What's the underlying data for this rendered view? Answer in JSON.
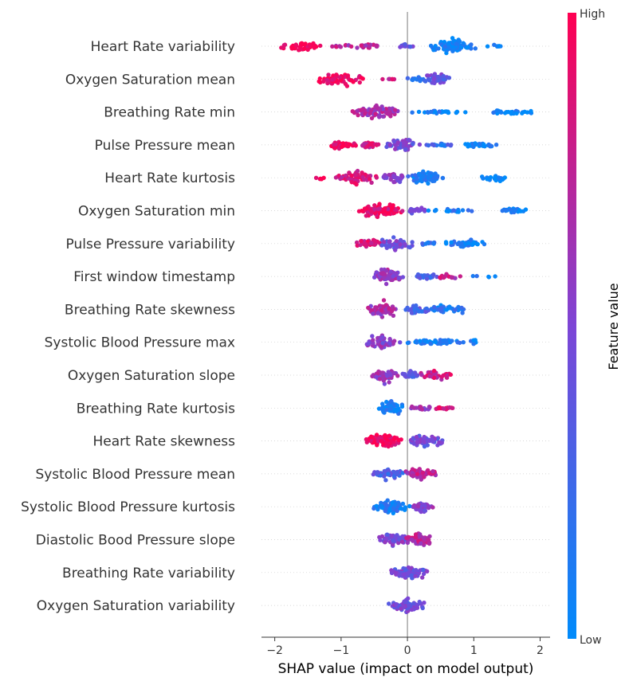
{
  "chart_data": {
    "type": "scatter",
    "subtype": "shap-beeswarm",
    "xlabel": "SHAP value (impact on model output)",
    "xlim": [
      -2.2,
      2.15
    ],
    "xticks": [
      -2,
      -1,
      0,
      1,
      2
    ],
    "xtick_labels": [
      "−2",
      "−1",
      "0",
      "1",
      "2"
    ],
    "colorbar": {
      "title": "Feature value",
      "high_label": "High",
      "low_label": "Low",
      "high_color": "#ff0052",
      "low_color": "#008bfb"
    },
    "features": [
      {
        "name": "Heart Rate variability",
        "groups": [
          {
            "lo": -2.0,
            "hi": -1.2,
            "val": 0.96,
            "n": 42,
            "w": 0.6
          },
          {
            "lo": -1.2,
            "hi": -0.3,
            "val": 0.72,
            "n": 30,
            "w": 0.3
          },
          {
            "lo": -0.2,
            "hi": 0.1,
            "val": 0.45,
            "n": 10,
            "w": 0.4
          },
          {
            "lo": 0.3,
            "hi": 1.05,
            "val": 0.06,
            "n": 85,
            "w": 1.0
          },
          {
            "lo": 1.1,
            "hi": 1.55,
            "val": 0.04,
            "n": 8,
            "w": 0.2
          }
        ]
      },
      {
        "name": "Oxygen Saturation mean",
        "groups": [
          {
            "lo": -1.4,
            "hi": -0.6,
            "val": 0.96,
            "n": 55,
            "w": 0.9
          },
          {
            "lo": -0.5,
            "hi": -0.15,
            "val": 0.8,
            "n": 6,
            "w": 0.1
          },
          {
            "lo": 0.0,
            "hi": 0.3,
            "val": 0.2,
            "n": 14,
            "w": 0.4
          },
          {
            "lo": 0.25,
            "hi": 0.65,
            "val": 0.4,
            "n": 40,
            "w": 0.9
          }
        ]
      },
      {
        "name": "Breathing Rate min",
        "groups": [
          {
            "lo": -0.85,
            "hi": -0.1,
            "val": 0.65,
            "n": 80,
            "w": 1.0
          },
          {
            "lo": 0.0,
            "hi": 0.95,
            "val": 0.06,
            "n": 25,
            "w": 0.2
          },
          {
            "lo": 1.1,
            "hi": 1.95,
            "val": 0.03,
            "n": 30,
            "w": 0.35
          }
        ]
      },
      {
        "name": "Pulse Pressure mean",
        "groups": [
          {
            "lo": -1.3,
            "hi": -0.75,
            "val": 0.95,
            "n": 40,
            "w": 0.6
          },
          {
            "lo": -0.75,
            "hi": -0.4,
            "val": 0.85,
            "n": 25,
            "w": 0.5
          },
          {
            "lo": -0.4,
            "hi": 0.25,
            "val": 0.45,
            "n": 60,
            "w": 0.9
          },
          {
            "lo": 0.25,
            "hi": 0.75,
            "val": 0.2,
            "n": 20,
            "w": 0.3
          },
          {
            "lo": 0.8,
            "hi": 1.4,
            "val": 0.05,
            "n": 30,
            "w": 0.3
          }
        ]
      },
      {
        "name": "Heart Rate kurtosis",
        "groups": [
          {
            "lo": -1.45,
            "hi": -1.2,
            "val": 0.95,
            "n": 5,
            "w": 0.3
          },
          {
            "lo": -1.1,
            "hi": -0.4,
            "val": 0.85,
            "n": 55,
            "w": 0.9
          },
          {
            "lo": -0.4,
            "hi": 0.0,
            "val": 0.55,
            "n": 35,
            "w": 0.7
          },
          {
            "lo": 0.0,
            "hi": 0.55,
            "val": 0.12,
            "n": 55,
            "w": 1.0
          },
          {
            "lo": 1.1,
            "hi": 1.6,
            "val": 0.04,
            "n": 22,
            "w": 0.5
          }
        ]
      },
      {
        "name": "Oxygen Saturation min",
        "groups": [
          {
            "lo": -0.75,
            "hi": -0.05,
            "val": 0.9,
            "n": 90,
            "w": 1.0
          },
          {
            "lo": -0.1,
            "hi": 0.3,
            "val": 0.4,
            "n": 18,
            "w": 0.5
          },
          {
            "lo": 0.3,
            "hi": 1.1,
            "val": 0.1,
            "n": 18,
            "w": 0.2
          },
          {
            "lo": 1.35,
            "hi": 1.85,
            "val": 0.04,
            "n": 22,
            "w": 0.45
          }
        ]
      },
      {
        "name": "Pulse Pressure variability",
        "groups": [
          {
            "lo": -0.8,
            "hi": -0.35,
            "val": 0.85,
            "n": 35,
            "w": 0.6
          },
          {
            "lo": -0.45,
            "hi": 0.15,
            "val": 0.45,
            "n": 50,
            "w": 0.9
          },
          {
            "lo": 0.15,
            "hi": 0.5,
            "val": 0.2,
            "n": 15,
            "w": 0.3
          },
          {
            "lo": 0.5,
            "hi": 1.2,
            "val": 0.07,
            "n": 45,
            "w": 0.6
          }
        ]
      },
      {
        "name": "First window timestamp",
        "groups": [
          {
            "lo": -0.55,
            "hi": -0.05,
            "val": 0.6,
            "n": 75,
            "w": 1.0
          },
          {
            "lo": 0.0,
            "hi": 0.5,
            "val": 0.3,
            "n": 25,
            "w": 0.4
          },
          {
            "lo": 0.4,
            "hi": 0.95,
            "val": 0.75,
            "n": 15,
            "w": 0.35
          },
          {
            "lo": 0.9,
            "hi": 1.4,
            "val": 0.1,
            "n": 5,
            "w": 0.15
          }
        ]
      },
      {
        "name": "Breathing Rate skewness",
        "groups": [
          {
            "lo": -0.65,
            "hi": -0.1,
            "val": 0.65,
            "n": 65,
            "w": 1.0
          },
          {
            "lo": -0.1,
            "hi": 0.35,
            "val": 0.3,
            "n": 40,
            "w": 0.7
          },
          {
            "lo": 0.3,
            "hi": 0.9,
            "val": 0.15,
            "n": 40,
            "w": 0.7
          }
        ]
      },
      {
        "name": "Systolic Blood Pressure max",
        "groups": [
          {
            "lo": -0.65,
            "hi": -0.1,
            "val": 0.55,
            "n": 60,
            "w": 1.0
          },
          {
            "lo": -0.1,
            "hi": 0.9,
            "val": 0.08,
            "n": 45,
            "w": 0.35
          },
          {
            "lo": 0.9,
            "hi": 1.1,
            "val": 0.05,
            "n": 6,
            "w": 0.4
          }
        ]
      },
      {
        "name": "Oxygen Saturation slope",
        "groups": [
          {
            "lo": -0.55,
            "hi": -0.1,
            "val": 0.6,
            "n": 60,
            "w": 1.0
          },
          {
            "lo": -0.1,
            "hi": 0.2,
            "val": 0.3,
            "n": 20,
            "w": 0.5
          },
          {
            "lo": 0.15,
            "hi": 0.7,
            "val": 0.8,
            "n": 35,
            "w": 0.8
          }
        ]
      },
      {
        "name": "Breathing Rate kurtosis",
        "groups": [
          {
            "lo": -0.45,
            "hi": -0.05,
            "val": 0.08,
            "n": 55,
            "w": 1.0
          },
          {
            "lo": 0.0,
            "hi": 0.4,
            "val": 0.6,
            "n": 25,
            "w": 0.35
          },
          {
            "lo": 0.35,
            "hi": 0.75,
            "val": 0.9,
            "n": 15,
            "w": 0.3
          }
        ]
      },
      {
        "name": "Heart Rate skewness",
        "groups": [
          {
            "lo": -0.65,
            "hi": -0.05,
            "val": 0.92,
            "n": 80,
            "w": 1.0
          },
          {
            "lo": -0.05,
            "hi": 0.6,
            "val": 0.45,
            "n": 55,
            "w": 0.8
          }
        ]
      },
      {
        "name": "Systolic Blood Pressure mean",
        "groups": [
          {
            "lo": -0.6,
            "hi": 0.0,
            "val": 0.3,
            "n": 50,
            "w": 0.7
          },
          {
            "lo": -0.1,
            "hi": 0.45,
            "val": 0.75,
            "n": 55,
            "w": 0.9
          }
        ]
      },
      {
        "name": "Systolic Blood Pressure kurtosis",
        "groups": [
          {
            "lo": -0.55,
            "hi": 0.05,
            "val": 0.1,
            "n": 75,
            "w": 1.0
          },
          {
            "lo": 0.0,
            "hi": 0.4,
            "val": 0.55,
            "n": 45,
            "w": 0.8
          }
        ]
      },
      {
        "name": "Diastolic Bood Pressure slope",
        "groups": [
          {
            "lo": -0.45,
            "hi": 0.0,
            "val": 0.45,
            "n": 45,
            "w": 0.8
          },
          {
            "lo": -0.1,
            "hi": 0.4,
            "val": 0.72,
            "n": 50,
            "w": 0.9
          }
        ]
      },
      {
        "name": "Breathing Rate variability",
        "groups": [
          {
            "lo": -0.3,
            "hi": 0.35,
            "val": 0.45,
            "n": 75,
            "w": 0.9
          }
        ]
      },
      {
        "name": "Oxygen Saturation variability",
        "groups": [
          {
            "lo": -0.3,
            "hi": 0.3,
            "val": 0.45,
            "n": 70,
            "w": 0.9
          }
        ]
      }
    ]
  }
}
